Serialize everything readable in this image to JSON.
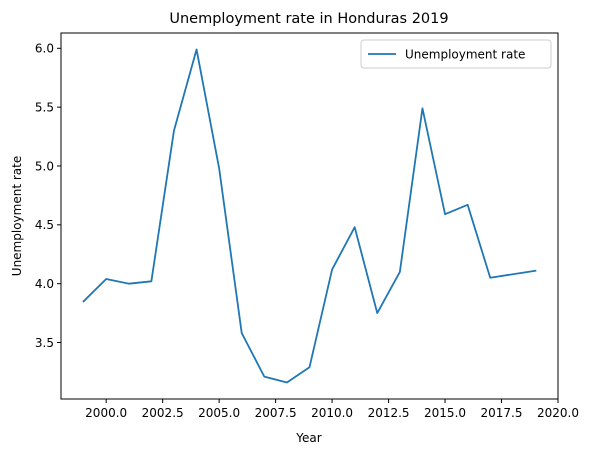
{
  "chart_data": {
    "type": "line",
    "title": "Unemployment rate in Honduras 2019",
    "xlabel": "Year",
    "ylabel": "Unemployment rate",
    "xlim": [
      1998.0,
      2020.0
    ],
    "ylim": [
      3.02,
      6.13
    ],
    "x_ticks": [
      2000.0,
      2002.5,
      2005.0,
      2007.5,
      2010.0,
      2012.5,
      2015.0,
      2017.5,
      2020.0
    ],
    "x_tick_labels": [
      "2000.0",
      "2002.5",
      "2005.0",
      "2007.5",
      "2010.0",
      "2012.5",
      "2015.0",
      "2017.5",
      "2020.0"
    ],
    "y_ticks": [
      3.5,
      4.0,
      4.5,
      5.0,
      5.5,
      6.0
    ],
    "y_tick_labels": [
      "3.5",
      "4.0",
      "4.5",
      "5.0",
      "5.5",
      "6.0"
    ],
    "grid": false,
    "legend_position": "top-right",
    "series": [
      {
        "name": "Unemployment rate",
        "color": "#1f77b4",
        "x": [
          1999,
          2000,
          2001,
          2002,
          2003,
          2004,
          2005,
          2006,
          2007,
          2008,
          2009,
          2010,
          2011,
          2012,
          2013,
          2014,
          2015,
          2016,
          2017,
          2019
        ],
        "y": [
          3.85,
          4.04,
          4.0,
          4.02,
          5.3,
          5.99,
          4.98,
          3.58,
          3.21,
          3.16,
          3.29,
          4.12,
          4.48,
          3.75,
          4.1,
          5.49,
          4.59,
          4.67,
          4.05,
          4.11
        ]
      }
    ]
  }
}
